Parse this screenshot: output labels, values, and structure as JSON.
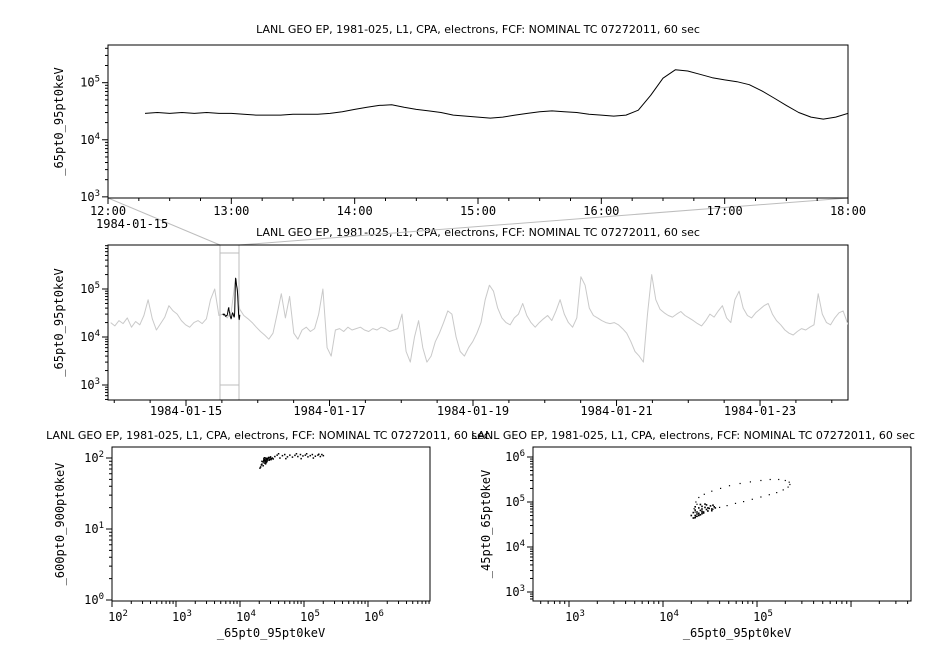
{
  "colors": {
    "background": "#ffffff",
    "series": "#000000",
    "context_series": "#c9c9c9",
    "overview_box": "#bdbdbd",
    "axis": "#000000"
  },
  "chart_data": [
    {
      "id": "top-timeseries",
      "type": "line",
      "title": "LANL GEO EP, 1981-025, L1, CPA, electrons, FCF: NOMINAL TC 07272011, 60 sec",
      "ylabel": "_65pt0_95pt0keV",
      "x_date_label": "1984-01-15",
      "x_tick_hours": [
        12,
        13,
        14,
        15,
        16,
        17,
        18
      ],
      "x_tick_labels": [
        "12:00",
        "13:00",
        "14:00",
        "15:00",
        "16:00",
        "17:00",
        "18:00"
      ],
      "x_minor_step_hours": 0.25,
      "xlim_hours": [
        12,
        18
      ],
      "y_exp_range": [
        2.98,
        5.66
      ],
      "y_tick_exps": [
        3,
        4,
        5
      ],
      "x_start_hours": 12.3,
      "x_step_hours": 0.1,
      "values_1e3": [
        29,
        30,
        29,
        30,
        29,
        30,
        29,
        29,
        28,
        27,
        27,
        27,
        28,
        28,
        28,
        29,
        31,
        34,
        37,
        40,
        41,
        37,
        34,
        32,
        30,
        27,
        26,
        25,
        24,
        25,
        27,
        29,
        31,
        32,
        31,
        30,
        28,
        27,
        26,
        27,
        33,
        60,
        120,
        168,
        160,
        140,
        122,
        112,
        104,
        92,
        72,
        54,
        40,
        30,
        25,
        23,
        25,
        29
      ]
    },
    {
      "id": "context-timeseries",
      "type": "line",
      "title": "LANL GEO EP, 1981-025, L1, CPA, electrons, FCF: NOMINAL TC 07272011, 60 sec",
      "ylabel": "_65pt0_95pt0keV",
      "x_tick_days": [
        0,
        2,
        4,
        6,
        8
      ],
      "x_tick_labels": [
        "1984-01-15",
        "1984-01-17",
        "1984-01-19",
        "1984-01-21",
        "1984-01-23"
      ],
      "x_minor_step_days": 0.5,
      "xlim_days": [
        -1.087,
        9.226
      ],
      "y_exp_range": [
        2.6875,
        5.917
      ],
      "y_tick_exps": [
        3,
        4,
        5
      ],
      "highlight_interval_days": [
        0.4737,
        0.7386
      ],
      "x_start_days": -1.05,
      "x_step_days": 0.058,
      "values_1e3": [
        20,
        17,
        22,
        19,
        25,
        16,
        21,
        18,
        28,
        60,
        24,
        14,
        19,
        26,
        45,
        35,
        30,
        22,
        18,
        16,
        20,
        22,
        19,
        24,
        60,
        100,
        28,
        30,
        25,
        34,
        170,
        38,
        28,
        24,
        20,
        16,
        13,
        11,
        9,
        12,
        30,
        80,
        25,
        70,
        12,
        9,
        14,
        16,
        13,
        15,
        30,
        100,
        6,
        4,
        14,
        15,
        13,
        16,
        14,
        15,
        16,
        14,
        13,
        15,
        14,
        16,
        15,
        13,
        14,
        15,
        30,
        5,
        3,
        10,
        22,
        6,
        3,
        4,
        8,
        12,
        20,
        35,
        30,
        10,
        5,
        4,
        6,
        8,
        12,
        20,
        60,
        120,
        90,
        40,
        25,
        20,
        18,
        25,
        30,
        50,
        28,
        20,
        16,
        20,
        24,
        28,
        22,
        35,
        60,
        30,
        20,
        16,
        25,
        180,
        120,
        40,
        28,
        25,
        22,
        20,
        19,
        20,
        18,
        15,
        12,
        8,
        5,
        4,
        3,
        30,
        200,
        60,
        38,
        32,
        28,
        26,
        30,
        34,
        28,
        25,
        22,
        19,
        17,
        22,
        30,
        26,
        35,
        45,
        25,
        20,
        60,
        90,
        40,
        28,
        25,
        32,
        38,
        45,
        50,
        30,
        22,
        18,
        14,
        12,
        11,
        13,
        15,
        14,
        16,
        18,
        80,
        30,
        20,
        18,
        25,
        32,
        35,
        20,
        14
      ]
    },
    {
      "id": "scatter-600-900",
      "type": "scatter",
      "title": "LANL GEO EP, 1981-025, L1, CPA, electrons, FCF: NOMINAL TC 07272011, 60 sec",
      "xlabel": "_65pt0_95pt0keV",
      "ylabel": "_600pt0_900pt0keV",
      "x_exp_range": [
        2,
        6.969
      ],
      "y_exp_range": [
        -0.014,
        2.155
      ],
      "x_tick_exps": [
        2,
        3,
        4,
        5,
        6
      ],
      "y_tick_exps": [
        0,
        1,
        2
      ],
      "points": [
        [
          21000.0,
          75
        ],
        [
          22000.0,
          82
        ],
        [
          23000.0,
          88
        ],
        [
          24000.0,
          95
        ],
        [
          25000.0,
          92
        ],
        [
          26000.0,
          98
        ],
        [
          24000.0,
          85
        ],
        [
          23000.0,
          78
        ],
        [
          22000.0,
          90
        ],
        [
          25000.0,
          100
        ],
        [
          27000.0,
          95
        ],
        [
          28000.0,
          102
        ],
        [
          26000.0,
          88
        ],
        [
          24500.0,
          93
        ],
        [
          23500.0,
          97
        ],
        [
          25500.0,
          86
        ],
        [
          26500.0,
          91
        ],
        [
          27500.0,
          99
        ],
        [
          29000.0,
          96
        ],
        [
          30000.0,
          104
        ],
        [
          31000.0,
          98
        ],
        [
          28500.0,
          93
        ],
        [
          29500.0,
          101
        ],
        [
          30500.0,
          95
        ],
        [
          21500.0,
          80
        ],
        [
          20500.0,
          72
        ],
        [
          32000.0,
          100
        ],
        [
          33000.0,
          97
        ],
        [
          25000.0,
          83
        ],
        [
          26000.0,
          94
        ],
        [
          24500.0,
          90
        ],
        [
          25500.0,
          96
        ],
        [
          23500.0,
          92
        ],
        [
          26500.0,
          99
        ],
        [
          25000.0,
          88
        ],
        [
          24000.0,
          101
        ],
        [
          35000.0,
          105
        ],
        [
          38000.0,
          110
        ],
        [
          42000.0,
          100
        ],
        [
          46000.0,
          108
        ],
        [
          50000.0,
          112
        ],
        [
          55000.0,
          104
        ],
        [
          60000.0,
          110
        ],
        [
          66000.0,
          103
        ],
        [
          72000.0,
          109
        ],
        [
          80000.0,
          105
        ],
        [
          88000.0,
          112
        ],
        [
          96000.0,
          107
        ],
        [
          105000.0,
          110
        ],
        [
          115000.0,
          104
        ],
        [
          125000.0,
          108
        ],
        [
          135000.0,
          112
        ],
        [
          150000.0,
          106
        ],
        [
          165000.0,
          110
        ],
        [
          180000.0,
          105
        ],
        [
          200000.0,
          108
        ],
        [
          40000.0,
          115
        ],
        [
          52000.0,
          98
        ],
        [
          76000.0,
          115
        ],
        [
          110000.0,
          115
        ],
        [
          140000.0,
          100
        ],
        [
          170000.0,
          113
        ],
        [
          90000.0,
          98
        ],
        [
          190000.0,
          112
        ]
      ]
    },
    {
      "id": "scatter-45-65",
      "type": "scatter",
      "title": "LANL GEO EP, 1981-025, L1, CPA, electrons, FCF: NOMINAL TC 07272011, 60 sec",
      "xlabel": "_65pt0_95pt0keV",
      "ylabel": "_45pt0_65pt0keV",
      "x_exp_range": [
        2.617,
        6.638
      ],
      "y_exp_range": [
        2.8,
        6.222
      ],
      "x_tick_exps": [
        3,
        4,
        5
      ],
      "y_tick_exps": [
        3,
        4,
        5,
        6
      ],
      "points": [
        [
          22000.0,
          45000.0
        ],
        [
          24000.0,
          50000.0
        ],
        [
          26000.0,
          55000.0
        ],
        [
          23000.0,
          60000.0
        ],
        [
          25000.0,
          65000.0
        ],
        [
          27000.0,
          60000.0
        ],
        [
          29000.0,
          68000.0
        ],
        [
          31000.0,
          72000.0
        ],
        [
          28000.0,
          76000.0
        ],
        [
          26000.0,
          70000.0
        ],
        [
          24000.0,
          56000.0
        ],
        [
          22000.0,
          50000.0
        ],
        [
          21000.0,
          44000.0
        ],
        [
          23000.0,
          48000.0
        ],
        [
          25000.0,
          52000.0
        ],
        [
          27000.0,
          57000.0
        ],
        [
          30000.0,
          63000.0
        ],
        [
          33000.0,
          70000.0
        ],
        [
          35000.0,
          78000.0
        ],
        [
          32000.0,
          82000.0
        ],
        [
          29000.0,
          86000.0
        ],
        [
          26000.0,
          80000.0
        ],
        [
          24000.0,
          74000.0
        ],
        [
          22000.0,
          66000.0
        ],
        [
          21000.0,
          58000.0
        ],
        [
          20000.0,
          50000.0
        ],
        [
          23000.0,
          54000.0
        ],
        [
          26000.0,
          62000.0
        ],
        [
          30000.0,
          74000.0
        ],
        [
          34000.0,
          85000.0
        ],
        [
          28000.0,
          90000.0
        ],
        [
          25000.0,
          88000.0
        ],
        [
          22000.0,
          78000.0
        ],
        [
          36000.0,
          74000.0
        ],
        [
          33000.0,
          64000.0
        ]
      ],
      "loop_points": [
        [
          24000.0,
          126000.0
        ],
        [
          27500.0,
          148000.0
        ],
        [
          33000.0,
          174000.0
        ],
        [
          41000.0,
          200000.0
        ],
        [
          51000.0,
          230000.0
        ],
        [
          66000.0,
          257000.0
        ],
        [
          85000.0,
          280000.0
        ],
        [
          110000.0,
          300000.0
        ],
        [
          138000.0,
          316000.0
        ],
        [
          170000.0,
          316000.0
        ],
        [
          200000.0,
          300000.0
        ],
        [
          220000.0,
          275000.0
        ],
        [
          224000.0,
          245000.0
        ],
        [
          214000.0,
          214000.0
        ],
        [
          190000.0,
          186000.0
        ],
        [
          162000.0,
          162000.0
        ],
        [
          135000.0,
          145000.0
        ],
        [
          110000.0,
          129000.0
        ],
        [
          89000.0,
          115000.0
        ],
        [
          72000.0,
          102000.0
        ],
        [
          59000.0,
          93000.0
        ],
        [
          48000.0,
          83000.0
        ],
        [
          40000.0,
          76000.0
        ],
        [
          34000.0,
          69000.0
        ],
        [
          30000.0,
          63000.0
        ],
        [
          26000.0,
          58000.0
        ],
        [
          24000.0,
          52000.0
        ],
        [
          22400.0,
          48000.0
        ],
        [
          21400.0,
          44000.0
        ],
        [
          22400.0,
          100000.0
        ],
        [
          23000.0,
          89000.0
        ],
        [
          22000.0,
          79000.0
        ],
        [
          21400.0,
          71000.0
        ],
        [
          22000.0,
          60000.0
        ]
      ]
    }
  ]
}
